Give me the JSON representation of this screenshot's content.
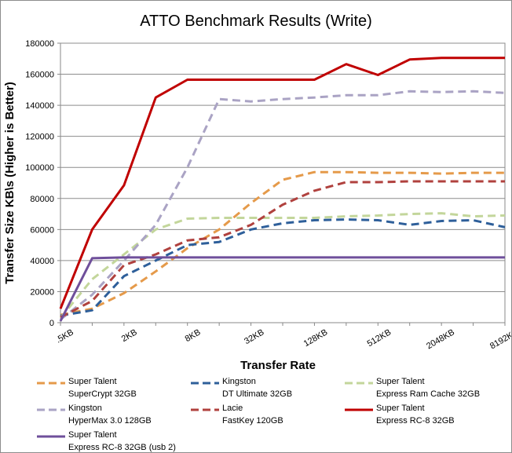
{
  "chart_data": {
    "type": "line",
    "title": "ATTO Benchmark Results (Write)",
    "xlabel": "Transfer Rate",
    "ylabel": "Transfer Size KB\\s (Higher is Better)",
    "ylim": [
      0,
      180000
    ],
    "yticks": [
      "0",
      "20000",
      "40000",
      "60000",
      "80000",
      "100000",
      "120000",
      "140000",
      "160000",
      "180000"
    ],
    "x": [
      ".5KB",
      "1KB",
      "2KB",
      "4KB",
      "8KB",
      "16KB",
      "32KB",
      "64KB",
      "128KB",
      "256KB",
      "512KB",
      "1024KB",
      "2048KB",
      "4096KB",
      "8192KB"
    ],
    "xtick_labels": [
      ".5KB",
      "2KB",
      "8KB",
      "32KB",
      "128KB",
      "512KB",
      "2048KB",
      "8192KB"
    ],
    "grid": true,
    "legend": "bottom",
    "series": [
      {
        "name_line1": "Super Talent",
        "name_line2": "SuperCrypt 32GB",
        "color": "#e59a4a",
        "dash": "dashed",
        "values": [
          5000,
          9000,
          19000,
          33000,
          48000,
          60000,
          77000,
          92000,
          97000,
          97000,
          96500,
          96500,
          96000,
          96500,
          96500
        ]
      },
      {
        "name_line1": "Kingston",
        "name_line2": "DT Ultimate 32GB",
        "color": "#2e5f9a",
        "dash": "dashed",
        "values": [
          4500,
          8000,
          30000,
          40000,
          50000,
          52000,
          60000,
          64000,
          66000,
          66500,
          66000,
          63000,
          65500,
          66000,
          61500
        ]
      },
      {
        "name_line1": "Super Talent",
        "name_line2": "Express Ram Cache 32GB",
        "color": "#c3d69b",
        "dash": "dashed",
        "values": [
          3000,
          28000,
          44000,
          60000,
          67000,
          67500,
          67500,
          67500,
          67500,
          68500,
          69000,
          70000,
          70500,
          68500,
          69000
        ]
      },
      {
        "name_line1": "Kingston",
        "name_line2": "HyperMax 3.0 128GB",
        "color": "#aaa3c4",
        "dash": "dashed",
        "values": [
          2000,
          18000,
          40000,
          63000,
          100000,
          144000,
          142500,
          144000,
          145000,
          146500,
          146500,
          149000,
          148500,
          149000,
          148000
        ]
      },
      {
        "name_line1": "Lacie",
        "name_line2": "FastKey 120GB",
        "color": "#b0413e",
        "dash": "dashed",
        "values": [
          3500,
          14000,
          37000,
          44000,
          53000,
          55000,
          63000,
          76000,
          85000,
          90500,
          90500,
          91000,
          91000,
          91000,
          91000
        ]
      },
      {
        "name_line1": "Super Talent",
        "name_line2": "Express RC-8 32GB",
        "color": "#c00000",
        "dash": "solid",
        "values": [
          9000,
          60000,
          88500,
          145000,
          156500,
          156500,
          156500,
          156500,
          156500,
          166500,
          159500,
          169500,
          170500,
          170500,
          170500
        ]
      },
      {
        "name_line1": "Super Talent",
        "name_line2": "Express RC-8 32GB (usb 2)",
        "color": "#6f4f9b",
        "dash": "solid",
        "values": [
          1000,
          41500,
          42000,
          42000,
          42000,
          42000,
          42000,
          42000,
          42000,
          42000,
          42000,
          42000,
          42000,
          42000,
          42000
        ]
      }
    ]
  }
}
